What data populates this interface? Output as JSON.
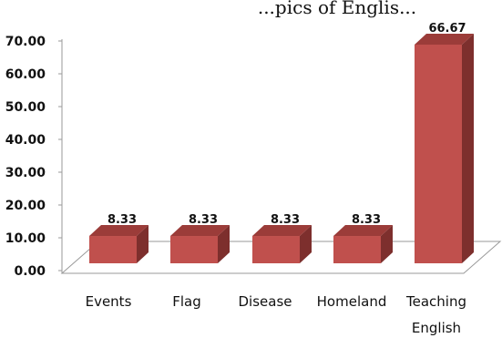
{
  "chart_data": {
    "type": "bar",
    "title": "...pics of Englis...",
    "categories": [
      [
        "Events"
      ],
      [
        "Flag"
      ],
      [
        "Disease"
      ],
      [
        "Homeland"
      ],
      [
        "Teaching",
        "English"
      ]
    ],
    "values": [
      8.33,
      8.33,
      8.33,
      8.33,
      66.67
    ],
    "value_labels": [
      "8.33",
      "8.33",
      "8.33",
      "8.33",
      "66.67"
    ],
    "y_ticks": [
      "0.00",
      "10.00",
      "20.00",
      "30.00",
      "40.00",
      "50.00",
      "60.00",
      "70.00"
    ],
    "ylim": [
      0,
      70
    ],
    "xlabel": "",
    "ylabel": "",
    "legend": "none",
    "grid": false,
    "style": "3d",
    "colors": {
      "bar_front": "#c0504d",
      "bar_side": "#7d2f2d",
      "bar_top": "#9b3c39",
      "floor": "#ffffff",
      "axis": "#9a9a9a"
    }
  }
}
